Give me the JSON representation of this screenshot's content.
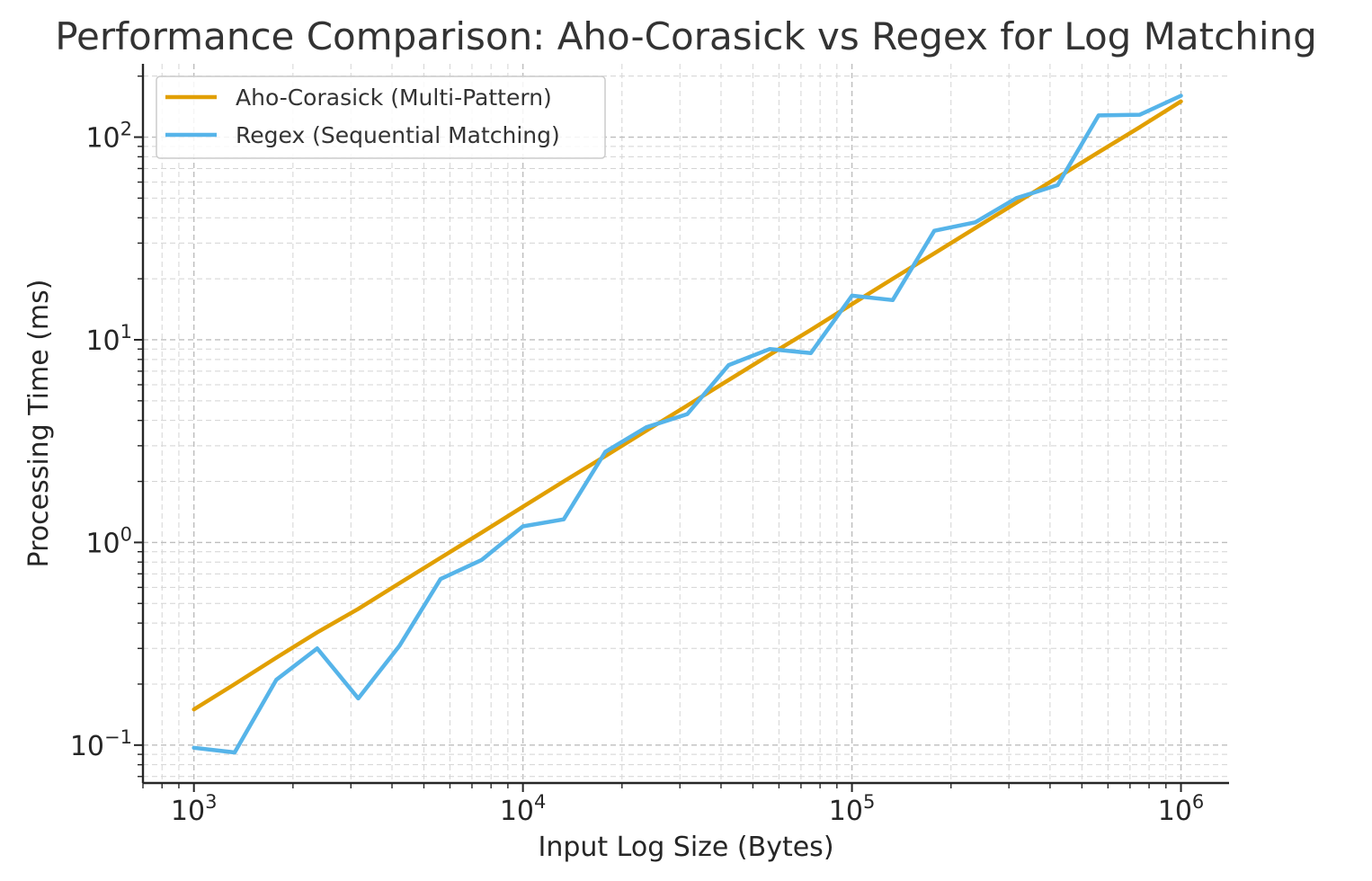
{
  "chart_data": {
    "type": "line",
    "title": "Performance Comparison: Aho-Corasick vs Regex for Log Matching",
    "xlabel": "Input Log Size (Bytes)",
    "ylabel": "Processing Time (ms)",
    "xscale": "log",
    "yscale": "log",
    "xlim": [
      700,
      1400000
    ],
    "ylim": [
      0.065,
      230
    ],
    "grid": true,
    "legend_position": "top-left",
    "x_ticks": [
      {
        "value": 1000,
        "base": "10",
        "exp": "3"
      },
      {
        "value": 10000,
        "base": "10",
        "exp": "4"
      },
      {
        "value": 100000,
        "base": "10",
        "exp": "5"
      },
      {
        "value": 1000000,
        "base": "10",
        "exp": "6"
      }
    ],
    "y_ticks": [
      {
        "value": 0.1,
        "base": "10",
        "exp": "−1"
      },
      {
        "value": 1,
        "base": "10",
        "exp": "0"
      },
      {
        "value": 10,
        "base": "10",
        "exp": "1"
      },
      {
        "value": 100,
        "base": "10",
        "exp": "2"
      }
    ],
    "x": [
      1000,
      1330,
      1780,
      2370,
      3160,
      4220,
      5620,
      7500,
      10000,
      13300,
      17800,
      23700,
      31600,
      42200,
      56200,
      75000,
      100000,
      133000,
      178000,
      237000,
      316000,
      422000,
      562000,
      750000,
      1000000
    ],
    "series": [
      {
        "name": "Aho-Corasick (Multi-Pattern)",
        "color": "#e19f00",
        "values": [
          0.15,
          0.2,
          0.27,
          0.36,
          0.47,
          0.63,
          0.84,
          1.12,
          1.5,
          2.0,
          2.67,
          3.56,
          4.74,
          6.33,
          8.43,
          11.2,
          15.0,
          20.0,
          26.7,
          35.6,
          47.4,
          63.3,
          84.3,
          112,
          150
        ]
      },
      {
        "name": "Regex (Sequential Matching)",
        "color": "#56b4e9",
        "values": [
          0.097,
          0.092,
          0.21,
          0.3,
          0.17,
          0.31,
          0.66,
          0.82,
          1.2,
          1.3,
          2.8,
          3.7,
          4.3,
          7.5,
          9.0,
          8.6,
          16.5,
          15.7,
          34.5,
          38,
          50,
          58,
          128,
          129,
          160
        ]
      }
    ]
  }
}
